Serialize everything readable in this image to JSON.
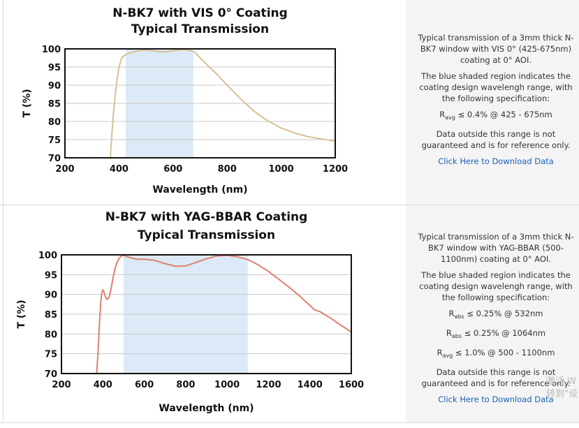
{
  "chart_data": [
    {
      "type": "line",
      "title": "N-BK7 with VIS 0° Coating",
      "subtitle": "Typical Transmission",
      "xlabel": "Wavelength (nm)",
      "ylabel": "T (%)",
      "xlim": [
        200,
        1200
      ],
      "ylim": [
        70,
        100
      ],
      "xticks": [
        "200",
        "400",
        "600",
        "800",
        "1000",
        "1200"
      ],
      "yticks": [
        "70",
        "75",
        "80",
        "85",
        "90",
        "95",
        "100"
      ],
      "grid": true,
      "shaded_range": [
        425,
        675
      ],
      "line_color": "#d8bf96",
      "shade_color": "#dce9f6",
      "series": [
        {
          "x": [
            368,
            373,
            380,
            390,
            400,
            410,
            420,
            430,
            445,
            460,
            480,
            500,
            520,
            540,
            560,
            580,
            600,
            620,
            640,
            660,
            680,
            700,
            730,
            760,
            800,
            850,
            900,
            950,
            1000,
            1050,
            1100,
            1150,
            1200
          ],
          "y": [
            70,
            76,
            83,
            90,
            95,
            97.5,
            98.2,
            98.6,
            99,
            99.3,
            99.6,
            99.7,
            99.5,
            99.3,
            99.2,
            99.3,
            99.5,
            99.7,
            99.8,
            99.6,
            99.1,
            97.5,
            95.3,
            93.2,
            90,
            86.2,
            82.8,
            80.2,
            78.2,
            76.8,
            75.8,
            75.2,
            74.6
          ]
        }
      ]
    },
    {
      "type": "line",
      "title": "N-BK7 with YAG-BBAR Coating",
      "subtitle": "Typical Transmission",
      "xlabel": "Wavelength (nm)",
      "ylabel": "T (%)",
      "xlim": [
        200,
        1600
      ],
      "ylim": [
        70,
        100
      ],
      "xticks": [
        "200",
        "400",
        "600",
        "800",
        "1000",
        "1200",
        "1400",
        "1600"
      ],
      "yticks": [
        "70",
        "75",
        "80",
        "85",
        "90",
        "95",
        "100"
      ],
      "grid": true,
      "shaded_range": [
        500,
        1100
      ],
      "line_color": "#e0806e",
      "shade_color": "#dce9f6",
      "series": [
        {
          "x": [
            370,
            375,
            380,
            385,
            390,
            395,
            400,
            405,
            410,
            420,
            430,
            440,
            450,
            460,
            470,
            480,
            490,
            500,
            520,
            540,
            560,
            600,
            650,
            700,
            750,
            800,
            850,
            900,
            950,
            1000,
            1050,
            1100,
            1150,
            1200,
            1250,
            1300,
            1350,
            1400,
            1420,
            1450,
            1500,
            1550,
            1600
          ],
          "y": [
            70,
            74,
            79,
            84,
            88,
            90.5,
            91.2,
            90.7,
            89.6,
            88.7,
            89.2,
            91.5,
            94.5,
            96.8,
            98.3,
            99.2,
            99.7,
            99.9,
            99.5,
            99.2,
            98.9,
            98.9,
            98.6,
            97.8,
            97.1,
            97.2,
            98.1,
            99,
            99.7,
            99.9,
            99.5,
            98.8,
            97.5,
            95.8,
            93.8,
            91.8,
            89.6,
            87.2,
            86.2,
            85.6,
            84,
            82.2,
            80.5
          ]
        }
      ]
    }
  ],
  "panels": [
    {
      "desc": "Typical transmission of a 3mm thick N-BK7 window with VIS 0° (425-675nm) coating at 0° AOI.",
      "shaded_note": "The blue shaded region indicates the coating design wavelengh range, with the following specification:",
      "specs": [
        {
          "symbol": "R",
          "sub": "avg",
          "value": " ≤ 0.4% @ 425 - 675nm"
        }
      ],
      "disclaimer": "Data outside this range is not guaranteed and is for reference only.",
      "link": "Click Here to Download Data"
    },
    {
      "desc": "Typical transmission of a 3mm thick N-BK7 window with YAG-BBAR (500-1100nm) coating at 0° AOI.",
      "shaded_note": "The blue shaded region indicates the coating design wavelengh range, with the following specification:",
      "specs": [
        {
          "symbol": "R",
          "sub": "abs",
          "value": " ≤ 0.25% @ 532nm"
        },
        {
          "symbol": "R",
          "sub": "abs",
          "value": " ≤ 0.25% @ 1064nm"
        },
        {
          "symbol": "R",
          "sub": "avg",
          "value": " ≤ 1.0% @ 500 - 1100nm"
        }
      ],
      "disclaimer": "Data outside this range is not guaranteed and is for reference only.",
      "link": "Click Here to Download Data"
    }
  ],
  "watermark": {
    "line1": "激活 W",
    "line2": "转到\"设"
  }
}
